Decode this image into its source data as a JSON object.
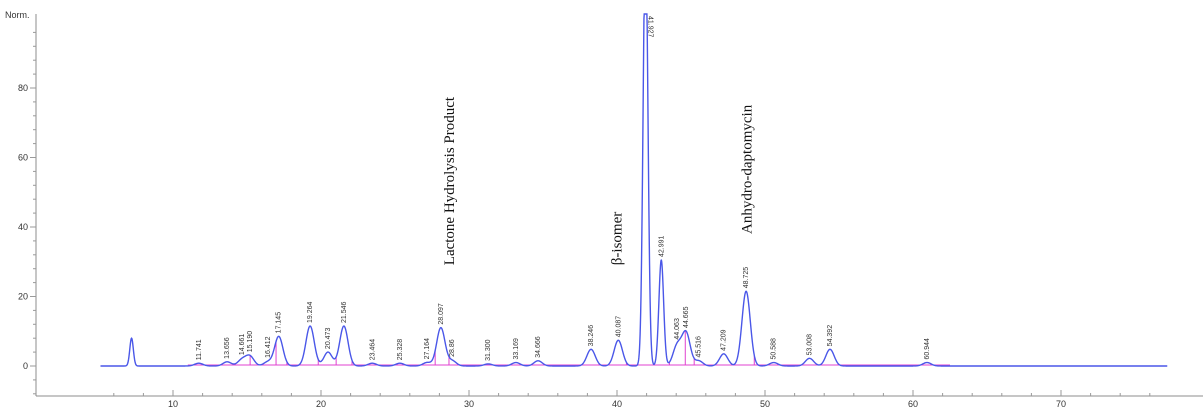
{
  "chart_data": {
    "type": "line",
    "ylabel": "Norm.",
    "yticks": [
      0,
      20,
      40,
      60,
      80
    ],
    "xticks": [
      10,
      20,
      30,
      40,
      50,
      60,
      70
    ],
    "xlim": [
      5,
      77.2
    ],
    "ylim": [
      -10,
      100
    ],
    "grid": false,
    "series": [
      {
        "color": "#4a57e8",
        "peaks": [
          {
            "rt": 7.2,
            "height": 8.0
          },
          {
            "rt": 11.741,
            "height": 0.8
          },
          {
            "rt": 13.656,
            "height": 1.2
          },
          {
            "rt": 14.661,
            "height": 1.8
          },
          {
            "rt": 15.19,
            "height": 2.8
          },
          {
            "rt": 16.412,
            "height": 1.2
          },
          {
            "rt": 17.145,
            "height": 8.5
          },
          {
            "rt": 19.264,
            "height": 11.5
          },
          {
            "rt": 20.473,
            "height": 4.0
          },
          {
            "rt": 21.546,
            "height": 11.5
          },
          {
            "rt": 23.464,
            "height": 0.8
          },
          {
            "rt": 25.328,
            "height": 0.8
          },
          {
            "rt": 27.164,
            "height": 1.0
          },
          {
            "rt": 28.097,
            "height": 11.0
          },
          {
            "rt": 28.86,
            "height": 1.5
          },
          {
            "rt": 31.3,
            "height": 0.6
          },
          {
            "rt": 33.169,
            "height": 1.0
          },
          {
            "rt": 34.666,
            "height": 1.5
          },
          {
            "rt": 38.246,
            "height": 4.8
          },
          {
            "rt": 40.087,
            "height": 7.4
          },
          {
            "rt": 41.927,
            "height": 125
          },
          {
            "rt": 42.991,
            "height": 30.5
          },
          {
            "rt": 44.063,
            "height": 5.8
          },
          {
            "rt": 44.665,
            "height": 9.5
          },
          {
            "rt": 45.516,
            "height": 1.5
          },
          {
            "rt": 47.209,
            "height": 3.5
          },
          {
            "rt": 48.725,
            "height": 21.5
          },
          {
            "rt": 50.588,
            "height": 1.0
          },
          {
            "rt": 53.008,
            "height": 2.2
          },
          {
            "rt": 54.392,
            "height": 4.8
          },
          {
            "rt": 60.944,
            "height": 1.0
          }
        ]
      }
    ],
    "peak_labels": [
      "11.741",
      "13.656",
      "14.661",
      "15.190",
      "16.412",
      "17.145",
      "19.264",
      "20.473",
      "21.546",
      "23.464",
      "25.328",
      "27.164",
      "28.097",
      "28.86",
      "31.300",
      "33.169",
      "34.666",
      "38.246",
      "40.087",
      "41.927",
      "42.991",
      "44.063",
      "44.665",
      "45.516",
      "47.209",
      "48.725",
      "50.588",
      "53.008",
      "54.392",
      "60.944"
    ],
    "peak_label_rts": [
      11.741,
      13.656,
      14.661,
      15.19,
      16.412,
      17.145,
      19.264,
      20.473,
      21.546,
      23.464,
      25.328,
      27.164,
      28.097,
      28.86,
      31.3,
      33.169,
      34.666,
      38.246,
      40.087,
      41.927,
      42.991,
      44.063,
      44.665,
      45.516,
      47.209,
      48.725,
      50.588,
      53.008,
      54.392,
      60.944
    ],
    "annotations": [
      {
        "text": "Lactone Hydrolysis Product",
        "rt": 29.0,
        "y": 29
      },
      {
        "text": "β-isomer",
        "rt": 40.3,
        "y": 29
      },
      {
        "text": "Anhydro-daptomycin",
        "rt": 49.1,
        "y": 38
      }
    ]
  }
}
